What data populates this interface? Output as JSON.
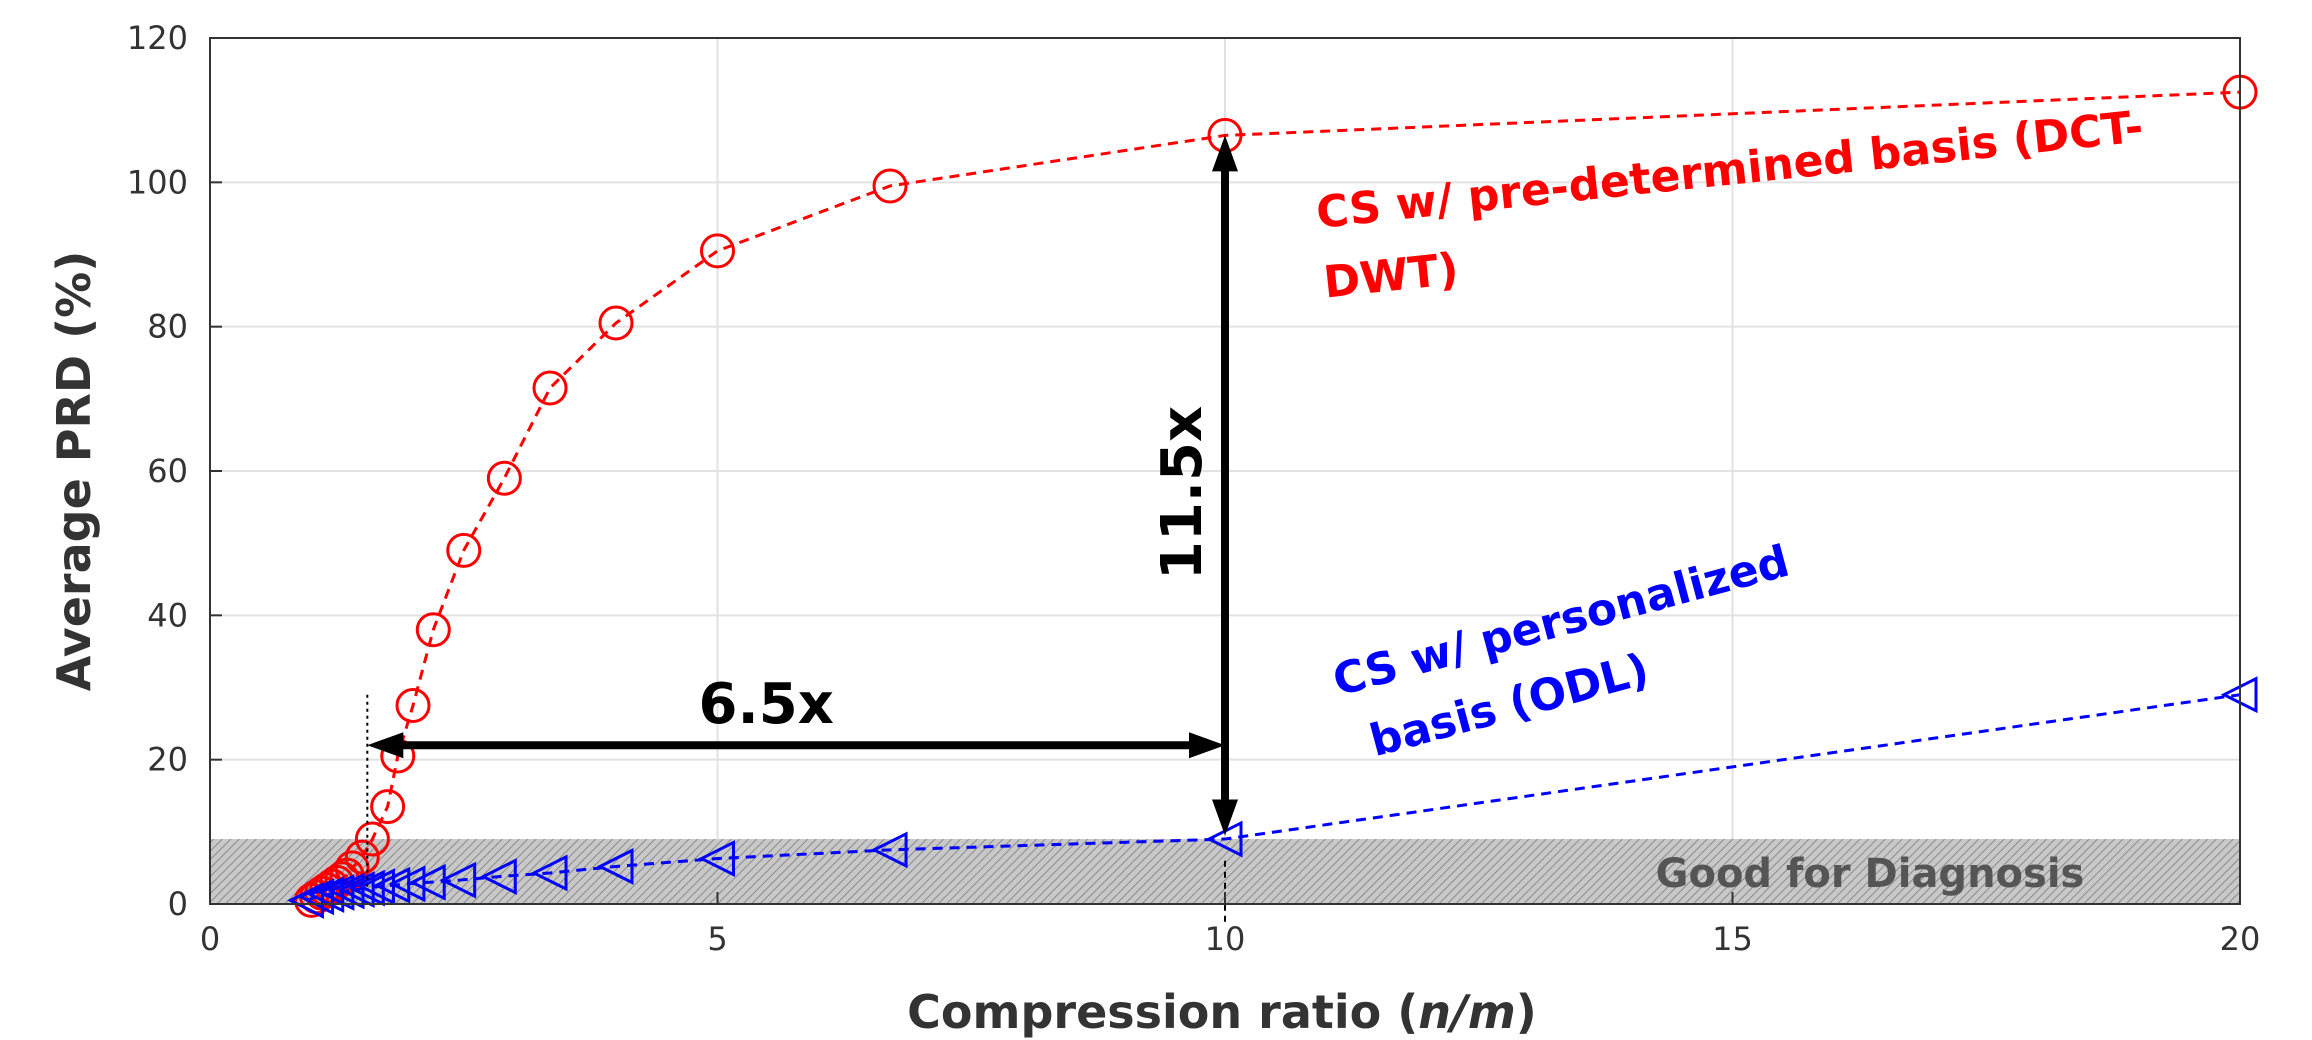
{
  "chart_data": {
    "type": "line",
    "xlabel_prefix": "Compression ratio (",
    "xlabel_italic": "n/m",
    "xlabel_suffix": ")",
    "ylabel": "Average PRD (%)",
    "xlim": [
      0,
      20
    ],
    "ylim": [
      0,
      120
    ],
    "xticks": [
      0,
      5,
      10,
      15,
      20
    ],
    "yticks": [
      0,
      20,
      40,
      60,
      80,
      100,
      120
    ],
    "grid": true,
    "series": [
      {
        "name": "CS w/ pre-determined basis (DCT-DWT)",
        "label_line1": "CS w/ pre-determined basis (DCT-",
        "label_line2": "DWT)",
        "color": "#ff0000",
        "marker": "circle",
        "x": [
          1.0,
          1.05,
          1.1,
          1.15,
          1.2,
          1.25,
          1.3,
          1.35,
          1.4,
          1.5,
          1.6,
          1.75,
          1.85,
          2.0,
          2.2,
          2.5,
          2.9,
          3.35,
          4.0,
          5.0,
          6.7,
          10.0,
          20.0
        ],
        "y": [
          0.5,
          1.0,
          1.5,
          2.0,
          2.5,
          3.0,
          3.5,
          4.0,
          5.0,
          6.5,
          9.0,
          13.5,
          20.5,
          27.5,
          38.0,
          49.0,
          59.0,
          71.5,
          80.5,
          90.5,
          99.5,
          106.5,
          112.5
        ]
      },
      {
        "name": "CS w/ personalized basis (ODL)",
        "label_line1": "CS w/ personalized",
        "label_line2": "basis (ODL)",
        "color": "#0000ff",
        "marker": "triangle-left",
        "x": [
          0.95,
          1.05,
          1.15,
          1.25,
          1.35,
          1.45,
          1.55,
          1.65,
          1.8,
          1.95,
          2.15,
          2.45,
          2.85,
          3.35,
          4.0,
          5.0,
          6.7,
          10.0,
          20.0
        ],
        "y": [
          0.5,
          1.0,
          1.3,
          1.6,
          1.8,
          2.0,
          2.2,
          2.4,
          2.6,
          2.8,
          3.0,
          3.3,
          3.8,
          4.3,
          5.2,
          6.3,
          7.5,
          9.0,
          29.0
        ]
      }
    ],
    "shaded_region": {
      "label": "Good for Diagnosis",
      "y_min": 0,
      "y_max": 9
    },
    "annotations": [
      {
        "label": "6.5x",
        "type": "horizontal-arrow",
        "x_from": 1.55,
        "x_to": 10.0,
        "y": 22
      },
      {
        "label": "11.5x",
        "type": "vertical-arrow",
        "x": 10.0,
        "y_from": 9.5,
        "y_to": 106.5
      }
    ]
  }
}
